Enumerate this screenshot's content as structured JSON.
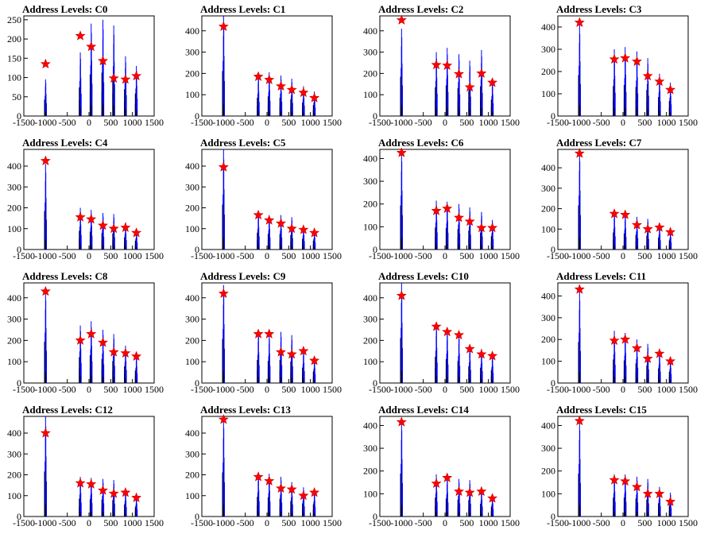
{
  "figure": {
    "colors": {
      "histogram": "#0000ff",
      "shadow": "#000000",
      "marker": "#ff0000",
      "frame": "#000000"
    },
    "marker_shape": "star"
  },
  "chart_data": [
    {
      "type": "bar",
      "title": "Address Levels: C0",
      "xlim": [
        -1500,
        1500
      ],
      "ylim": [
        0,
        260
      ],
      "xticks": [
        -1500,
        -1000,
        -500,
        0,
        500,
        1000,
        1500
      ],
      "yticks": [
        0,
        50,
        100,
        150,
        200,
        250
      ],
      "peaks": [
        [
          -1000,
          95
        ],
        [
          -200,
          165
        ],
        [
          50,
          240
        ],
        [
          320,
          250
        ],
        [
          570,
          235
        ],
        [
          840,
          155
        ],
        [
          1090,
          130
        ]
      ],
      "markers": [
        [
          -1000,
          135
        ],
        [
          -200,
          208
        ],
        [
          50,
          180
        ],
        [
          320,
          143
        ],
        [
          570,
          98
        ],
        [
          840,
          95
        ],
        [
          1090,
          104
        ]
      ]
    },
    {
      "type": "bar",
      "title": "Address Levels: C1",
      "xlim": [
        -1500,
        1500
      ],
      "ylim": [
        0,
        470
      ],
      "xticks": [
        -1500,
        -1000,
        -500,
        0,
        500,
        1000,
        1500
      ],
      "yticks": [
        0,
        100,
        200,
        300,
        400
      ],
      "peaks": [
        [
          -1000,
          470
        ],
        [
          -200,
          190
        ],
        [
          50,
          205
        ],
        [
          320,
          190
        ],
        [
          570,
          175
        ],
        [
          840,
          140
        ],
        [
          1090,
          115
        ]
      ],
      "markers": [
        [
          -1000,
          420
        ],
        [
          -200,
          185
        ],
        [
          50,
          170
        ],
        [
          320,
          140
        ],
        [
          570,
          123
        ],
        [
          840,
          110
        ],
        [
          1090,
          85
        ]
      ]
    },
    {
      "type": "bar",
      "title": "Address Levels: C2",
      "xlim": [
        -1500,
        1500
      ],
      "ylim": [
        0,
        470
      ],
      "xticks": [
        -1500,
        -1000,
        -500,
        0,
        500,
        1000,
        1500
      ],
      "yticks": [
        0,
        100,
        200,
        300,
        400
      ],
      "peaks": [
        [
          -1000,
          410
        ],
        [
          -200,
          300
        ],
        [
          50,
          320
        ],
        [
          320,
          290
        ],
        [
          570,
          260
        ],
        [
          840,
          310
        ],
        [
          1090,
          170
        ]
      ],
      "markers": [
        [
          -1000,
          450
        ],
        [
          -200,
          240
        ],
        [
          50,
          237
        ],
        [
          320,
          197
        ],
        [
          570,
          135
        ],
        [
          840,
          200
        ],
        [
          1090,
          157
        ]
      ]
    },
    {
      "type": "bar",
      "title": "Address Levels: C3",
      "xlim": [
        -1500,
        1500
      ],
      "ylim": [
        0,
        450
      ],
      "xticks": [
        -1500,
        -1000,
        -500,
        0,
        500,
        1000,
        1500
      ],
      "yticks": [
        0,
        100,
        200,
        300,
        400
      ],
      "peaks": [
        [
          -1000,
          410
        ],
        [
          -200,
          300
        ],
        [
          50,
          310
        ],
        [
          320,
          290
        ],
        [
          570,
          260
        ],
        [
          840,
          190
        ],
        [
          1090,
          150
        ]
      ],
      "markers": [
        [
          -1000,
          420
        ],
        [
          -200,
          255
        ],
        [
          50,
          260
        ],
        [
          320,
          245
        ],
        [
          570,
          180
        ],
        [
          840,
          155
        ],
        [
          1090,
          118
        ]
      ]
    },
    {
      "type": "bar",
      "title": "Address Levels: C4",
      "xlim": [
        -1500,
        1500
      ],
      "ylim": [
        0,
        480
      ],
      "xticks": [
        -1500,
        -1000,
        -500,
        0,
        500,
        1000,
        1500
      ],
      "yticks": [
        0,
        100,
        200,
        300,
        400
      ],
      "peaks": [
        [
          -1000,
          410
        ],
        [
          -200,
          200
        ],
        [
          50,
          190
        ],
        [
          320,
          175
        ],
        [
          570,
          170
        ],
        [
          840,
          130
        ],
        [
          1090,
          95
        ]
      ],
      "markers": [
        [
          -1000,
          425
        ],
        [
          -200,
          155
        ],
        [
          50,
          145
        ],
        [
          320,
          115
        ],
        [
          570,
          100
        ],
        [
          840,
          105
        ],
        [
          1090,
          80
        ]
      ]
    },
    {
      "type": "bar",
      "title": "Address Levels: C5",
      "xlim": [
        -1500,
        1500
      ],
      "ylim": [
        0,
        480
      ],
      "xticks": [
        -1500,
        -1000,
        -500,
        0,
        500,
        1000,
        1500
      ],
      "yticks": [
        0,
        100,
        200,
        300,
        400
      ],
      "peaks": [
        [
          -1000,
          480
        ],
        [
          -200,
          180
        ],
        [
          50,
          165
        ],
        [
          320,
          165
        ],
        [
          570,
          155
        ],
        [
          840,
          115
        ],
        [
          1090,
          95
        ]
      ],
      "markers": [
        [
          -1000,
          395
        ],
        [
          -200,
          165
        ],
        [
          50,
          140
        ],
        [
          320,
          125
        ],
        [
          570,
          100
        ],
        [
          840,
          95
        ],
        [
          1090,
          80
        ]
      ]
    },
    {
      "type": "bar",
      "title": "Address Levels: C6",
      "xlim": [
        -1500,
        1500
      ],
      "ylim": [
        0,
        440
      ],
      "xticks": [
        -1500,
        -1000,
        -500,
        0,
        500,
        1000,
        1500
      ],
      "yticks": [
        0,
        100,
        200,
        300,
        400
      ],
      "peaks": [
        [
          -1000,
          430
        ],
        [
          -200,
          215
        ],
        [
          50,
          210
        ],
        [
          320,
          200
        ],
        [
          570,
          185
        ],
        [
          840,
          165
        ],
        [
          1090,
          130
        ]
      ],
      "markers": [
        [
          -1000,
          425
        ],
        [
          -200,
          170
        ],
        [
          50,
          180
        ],
        [
          320,
          140
        ],
        [
          570,
          123
        ],
        [
          840,
          95
        ],
        [
          1090,
          95
        ]
      ]
    },
    {
      "type": "bar",
      "title": "Address Levels: C7",
      "xlim": [
        -1500,
        1500
      ],
      "ylim": [
        0,
        490
      ],
      "xticks": [
        -1500,
        -1000,
        -500,
        0,
        500,
        1000,
        1500
      ],
      "yticks": [
        0,
        100,
        200,
        300,
        400
      ],
      "peaks": [
        [
          -1000,
          480
        ],
        [
          -200,
          185
        ],
        [
          50,
          175
        ],
        [
          320,
          160
        ],
        [
          570,
          150
        ],
        [
          840,
          130
        ],
        [
          1090,
          100
        ]
      ],
      "markers": [
        [
          -1000,
          470
        ],
        [
          -200,
          175
        ],
        [
          50,
          170
        ],
        [
          320,
          120
        ],
        [
          570,
          100
        ],
        [
          840,
          108
        ],
        [
          1090,
          85
        ]
      ]
    },
    {
      "type": "bar",
      "title": "Address Levels: C8",
      "xlim": [
        -1500,
        1500
      ],
      "ylim": [
        0,
        470
      ],
      "xticks": [
        -1500,
        -1000,
        -500,
        0,
        500,
        1000,
        1500
      ],
      "yticks": [
        0,
        100,
        200,
        300,
        400
      ],
      "peaks": [
        [
          -1000,
          430
        ],
        [
          -200,
          270
        ],
        [
          50,
          290
        ],
        [
          320,
          250
        ],
        [
          570,
          230
        ],
        [
          840,
          175
        ],
        [
          1090,
          130
        ]
      ],
      "markers": [
        [
          -1000,
          430
        ],
        [
          -200,
          200
        ],
        [
          50,
          230
        ],
        [
          320,
          190
        ],
        [
          570,
          145
        ],
        [
          840,
          140
        ],
        [
          1090,
          125
        ]
      ]
    },
    {
      "type": "bar",
      "title": "Address Levels: C9",
      "xlim": [
        -1500,
        1500
      ],
      "ylim": [
        0,
        470
      ],
      "xticks": [
        -1500,
        -1000,
        -500,
        0,
        500,
        1000,
        1500
      ],
      "yticks": [
        0,
        100,
        200,
        300,
        400
      ],
      "peaks": [
        [
          -1000,
          460
        ],
        [
          -200,
          240
        ],
        [
          50,
          230
        ],
        [
          320,
          240
        ],
        [
          570,
          225
        ],
        [
          840,
          160
        ],
        [
          1090,
          120
        ]
      ],
      "markers": [
        [
          -1000,
          420
        ],
        [
          -200,
          230
        ],
        [
          50,
          230
        ],
        [
          320,
          145
        ],
        [
          570,
          135
        ],
        [
          840,
          150
        ],
        [
          1090,
          105
        ]
      ]
    },
    {
      "type": "bar",
      "title": "Address Levels: C10",
      "xlim": [
        -1500,
        1500
      ],
      "ylim": [
        0,
        470
      ],
      "xticks": [
        -1500,
        -1000,
        -500,
        0,
        500,
        1000,
        1500
      ],
      "yticks": [
        0,
        100,
        200,
        300,
        400
      ],
      "peaks": [
        [
          -1000,
          470
        ],
        [
          -200,
          275
        ],
        [
          50,
          250
        ],
        [
          320,
          230
        ],
        [
          570,
          175
        ],
        [
          840,
          160
        ],
        [
          1090,
          135
        ]
      ],
      "markers": [
        [
          -1000,
          410
        ],
        [
          -200,
          265
        ],
        [
          50,
          240
        ],
        [
          320,
          225
        ],
        [
          570,
          160
        ],
        [
          840,
          135
        ],
        [
          1090,
          127
        ]
      ]
    },
    {
      "type": "bar",
      "title": "Address Levels: C11",
      "xlim": [
        -1500,
        1500
      ],
      "ylim": [
        0,
        460
      ],
      "xticks": [
        -1500,
        -1000,
        -500,
        0,
        500,
        1000,
        1500
      ],
      "yticks": [
        0,
        100,
        200,
        300,
        400
      ],
      "peaks": [
        [
          -1000,
          420
        ],
        [
          -200,
          240
        ],
        [
          50,
          230
        ],
        [
          320,
          200
        ],
        [
          570,
          180
        ],
        [
          840,
          150
        ],
        [
          1090,
          115
        ]
      ],
      "markers": [
        [
          -1000,
          430
        ],
        [
          -200,
          195
        ],
        [
          50,
          200
        ],
        [
          320,
          160
        ],
        [
          570,
          112
        ],
        [
          840,
          135
        ],
        [
          1090,
          100
        ]
      ]
    },
    {
      "type": "bar",
      "title": "Address Levels: C12",
      "xlim": [
        -1500,
        1500
      ],
      "ylim": [
        0,
        480
      ],
      "xticks": [
        -1500,
        -1000,
        -500,
        0,
        500,
        1000,
        1500
      ],
      "yticks": [
        0,
        100,
        200,
        300,
        400
      ],
      "peaks": [
        [
          -1000,
          480
        ],
        [
          -200,
          190
        ],
        [
          50,
          185
        ],
        [
          320,
          180
        ],
        [
          570,
          175
        ],
        [
          840,
          130
        ],
        [
          1090,
          100
        ]
      ],
      "markers": [
        [
          -1000,
          400
        ],
        [
          -200,
          160
        ],
        [
          50,
          155
        ],
        [
          320,
          125
        ],
        [
          570,
          110
        ],
        [
          840,
          115
        ],
        [
          1090,
          90
        ]
      ]
    },
    {
      "type": "bar",
      "title": "Address Levels: C13",
      "xlim": [
        -1500,
        1500
      ],
      "ylim": [
        0,
        480
      ],
      "xticks": [
        -1500,
        -1000,
        -500,
        0,
        500,
        1000,
        1500
      ],
      "yticks": [
        0,
        100,
        200,
        300,
        400
      ],
      "peaks": [
        [
          -1000,
          470
        ],
        [
          -200,
          210
        ],
        [
          50,
          205
        ],
        [
          320,
          190
        ],
        [
          570,
          165
        ],
        [
          840,
          140
        ],
        [
          1090,
          130
        ]
      ],
      "markers": [
        [
          -1000,
          465
        ],
        [
          -200,
          190
        ],
        [
          50,
          170
        ],
        [
          320,
          135
        ],
        [
          570,
          130
        ],
        [
          840,
          100
        ],
        [
          1090,
          115
        ]
      ]
    },
    {
      "type": "bar",
      "title": "Address Levels: C14",
      "xlim": [
        -1500,
        1500
      ],
      "ylim": [
        0,
        440
      ],
      "xticks": [
        -1500,
        -1000,
        -500,
        0,
        500,
        1000,
        1500
      ],
      "yticks": [
        0,
        100,
        200,
        300,
        400
      ],
      "peaks": [
        [
          -1000,
          420
        ],
        [
          -200,
          185
        ],
        [
          50,
          175
        ],
        [
          320,
          165
        ],
        [
          570,
          160
        ],
        [
          840,
          125
        ],
        [
          1090,
          95
        ]
      ],
      "markers": [
        [
          -1000,
          415
        ],
        [
          -200,
          145
        ],
        [
          50,
          170
        ],
        [
          320,
          110
        ],
        [
          570,
          105
        ],
        [
          840,
          110
        ],
        [
          1090,
          80
        ]
      ]
    },
    {
      "type": "bar",
      "title": "Address Levels: C15",
      "xlim": [
        -1500,
        1500
      ],
      "ylim": [
        0,
        440
      ],
      "xticks": [
        -1500,
        -1000,
        -500,
        0,
        500,
        1000,
        1500
      ],
      "yticks": [
        0,
        100,
        200,
        300,
        400
      ],
      "peaks": [
        [
          -1000,
          420
        ],
        [
          -200,
          185
        ],
        [
          50,
          185
        ],
        [
          320,
          175
        ],
        [
          570,
          165
        ],
        [
          840,
          130
        ],
        [
          1090,
          105
        ]
      ],
      "markers": [
        [
          -1000,
          420
        ],
        [
          -200,
          160
        ],
        [
          50,
          155
        ],
        [
          320,
          130
        ],
        [
          570,
          100
        ],
        [
          840,
          100
        ],
        [
          1090,
          65
        ]
      ]
    }
  ]
}
